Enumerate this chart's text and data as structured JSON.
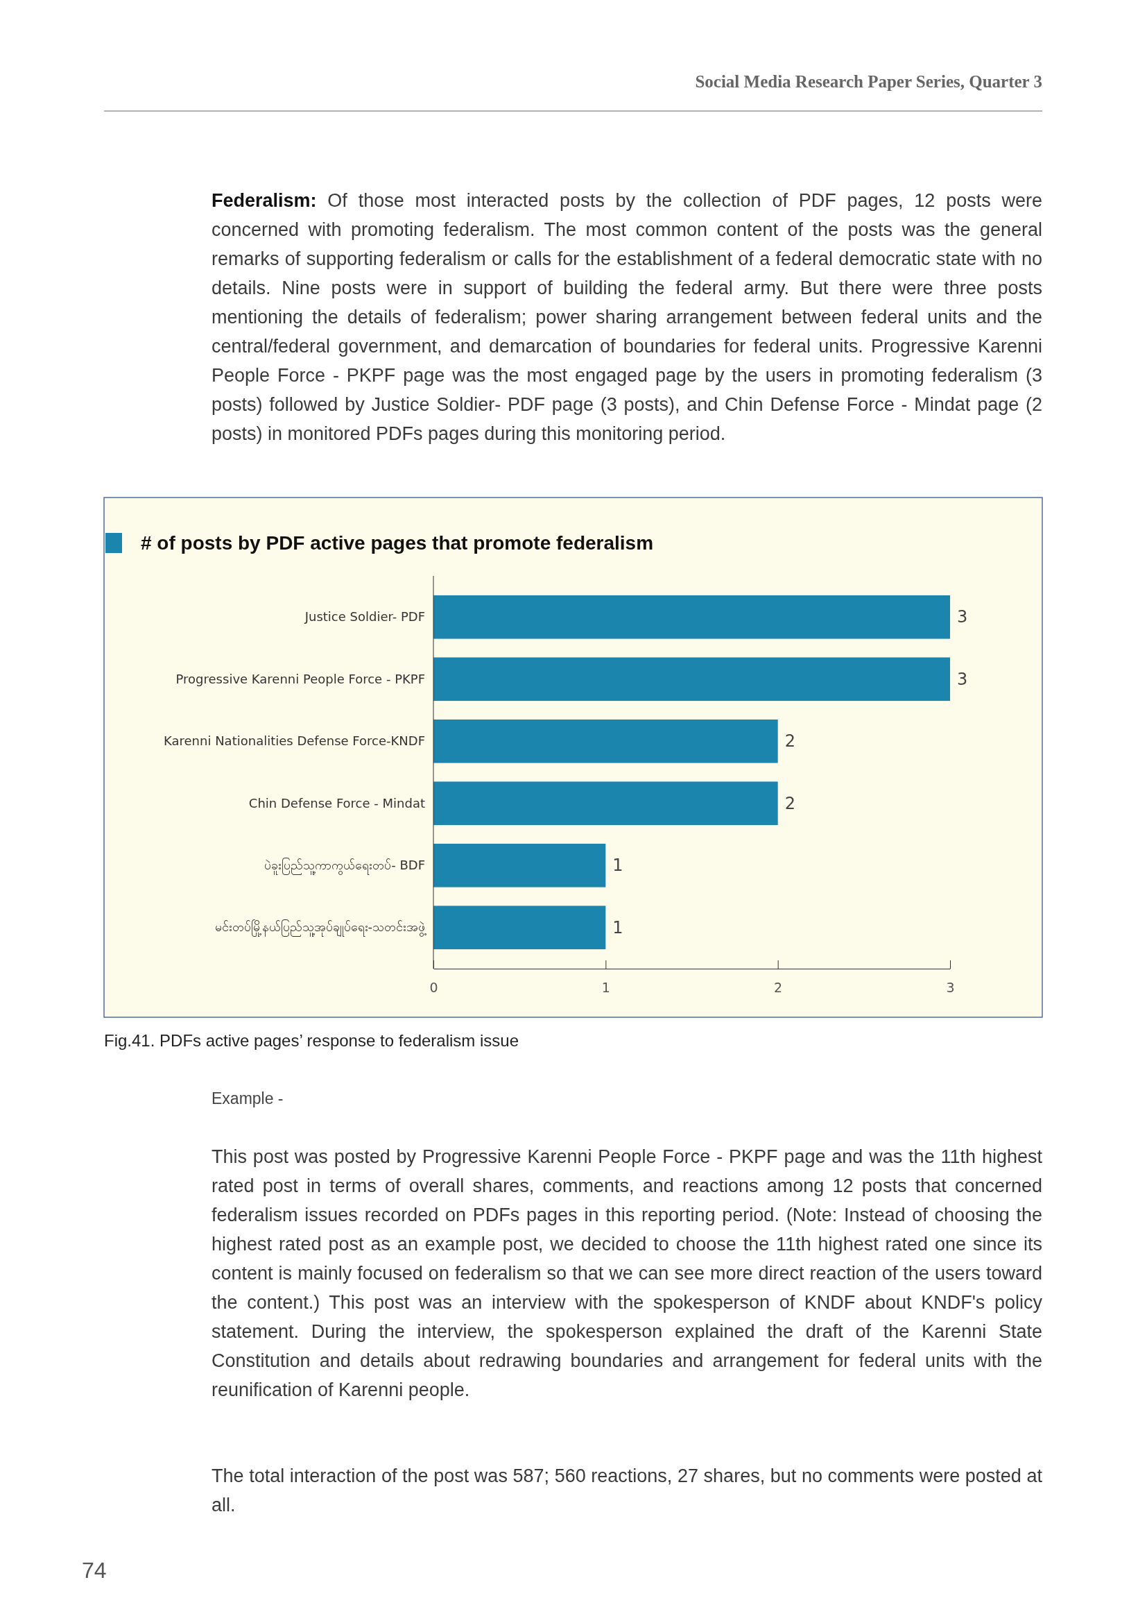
{
  "chart_data": {
    "type": "bar",
    "orientation": "horizontal",
    "title": "# of posts by PDF active pages that promote federalism",
    "categories": [
      "Justice Soldier- PDF",
      "Progressive Karenni People Force - PKPF",
      "Karenni Nationalities Defense Force-KNDF",
      "Chin Defense Force - Mindat",
      "ပဲခူးပြည်သူ့ကာကွယ်ရေးတပ်- BDF",
      "မင်းတပ်မြို့နယ်ပြည်သူ့အုပ်ချုပ်ရေး-သတင်းအဖွဲ့"
    ],
    "values": [
      3,
      3,
      2,
      2,
      1,
      1
    ],
    "color": "#1b85ae",
    "xlim": [
      0,
      3
    ],
    "xticks": [
      0,
      1,
      2,
      3
    ],
    "data_labels": true,
    "annotations": [
      "Social Media Research Paper Series, Quarter 3",
      "Federalism: Of those most interacted posts by the collection of PDF pages, 12 posts were concerned with promoting federalism. The most common content of the posts was the general remarks of supporting federalism or calls for the establishment of a federal democratic state with no details. Nine posts were in support of building the federal army. But there were three posts mentioning the details of federalism; power sharing arrangement between federal units and the central/federal government, and demarcation of boundaries for federal units. Progressive Karenni People Force - PKPF page was the most engaged page by the users in promoting federalism (3 posts) followed by Justice Soldier- PDF page (3 posts), and Chin Defense Force - Mindat page (2 posts) in monitored PDFs pages during this monitoring period.",
      "Fig.41. PDFs active pages’ response to federalism issue",
      "Example -",
      "This post was posted by Progressive Karenni People Force - PKPF page and was the 11th highest rated post in terms of overall shares, comments, and reactions among 12 posts that concerned federalism issues recorded on PDFs pages in this reporting period. (Note: Instead of choosing the highest rated post as an example post, we decided to choose the 11th highest rated one since its content is mainly focused on federalism so that we can see more direct reaction of the users toward the content.) This post was an interview with the spokesperson of KNDF about KNDF's policy statement. During the interview, the spokesperson explained the draft of the Karenni State Constitution and details about redrawing boundaries and arrangement for federal units with the reunification of Karenni people.",
      "The total interaction of the post was 587; 560 reactions, 27 shares, but no comments were posted at all.",
      "74"
    ]
  }
}
